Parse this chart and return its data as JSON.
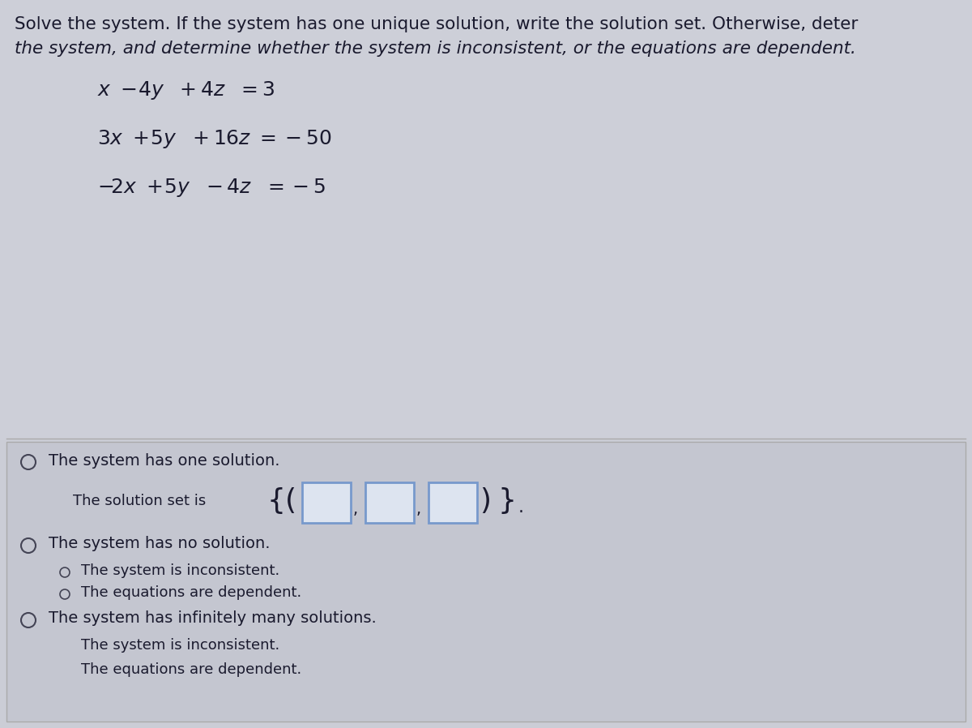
{
  "bg_top": "#cbcdd6",
  "bg_bottom": "#bfc2cc",
  "answer_box_bg": "#c8cad4",
  "answer_box_border": "#999aaa",
  "text_color": "#1a1a2e",
  "title_line1": "Solve the system. If the system has one unique solution, write the solution set. Otherwise, deter",
  "title_line2": "the system, and determine whether the system is inconsistent, or the equations are dependent.",
  "opt1_main": "The system has one solution.",
  "opt1_sub": "The solution set is",
  "opt2_main": "The system has no solution.",
  "opt2_sub1": "The system is inconsistent.",
  "opt2_sub2": "The equations are dependent.",
  "opt3_main": "The system has infinitely many solutions.",
  "opt3_sub1": "The system is inconsistent.",
  "opt3_sub2": "The equations are dependent.",
  "input_box_color": "#dde4f0",
  "input_box_border": "#7799cc",
  "radio_color": "#444455",
  "title_fontsize": 15.5,
  "title2_fontsize": 15.5,
  "eq_fontsize": 18,
  "opt_fontsize": 14,
  "sub_fontsize": 13
}
